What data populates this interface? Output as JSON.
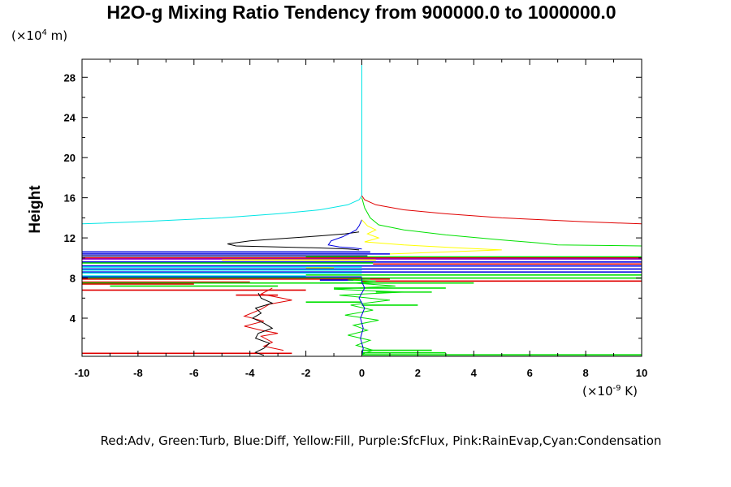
{
  "chart_data": {
    "type": "line",
    "title": "H2O-g Mixing Ratio Tendency from 900000.0 to 1000000.0",
    "ylabel": "Height",
    "y_units_prefix": "(×10",
    "y_units_exp": "4",
    "y_units_suffix": " m)",
    "x_units_prefix": "(×10",
    "x_units_exp": "-9",
    "x_units_suffix": " K)",
    "xlim": [
      -10,
      10
    ],
    "ylim": [
      0.2,
      29.8
    ],
    "x_ticks": [
      -10,
      -8,
      -6,
      -4,
      -2,
      0,
      2,
      4,
      6,
      8,
      10
    ],
    "x_tick_labels": [
      "-10",
      "-8",
      "-6",
      "-4",
      "-2",
      "0",
      "2",
      "4",
      "6",
      "8",
      "10"
    ],
    "y_ticks": [
      4,
      8,
      12,
      16,
      20,
      24,
      28
    ],
    "y_tick_labels": [
      "4",
      "8",
      "12",
      "16",
      "20",
      "24",
      "28"
    ],
    "legend_text": "Red:Adv, Green:Turb, Blue:Diff, Yellow:Fill, Purple:SfcFlux, Pink:RainEvap,Cyan:Condensation",
    "series": [
      {
        "color": "#00e5e5",
        "x": [
          -10,
          -8,
          -5,
          -3,
          -1.5,
          -0.5,
          -0.1,
          0,
          0,
          0
        ],
        "y": [
          13.4,
          13.6,
          14,
          14.4,
          14.8,
          15.3,
          15.8,
          16.2,
          20,
          29.8
        ]
      },
      {
        "color": "#e00000",
        "x": [
          10,
          8,
          5,
          3,
          1.5,
          0.5,
          0.1,
          0
        ],
        "y": [
          13.4,
          13.6,
          14,
          14.4,
          14.8,
          15.3,
          15.8,
          16.2
        ]
      },
      {
        "color": "#00e000",
        "x": [
          10,
          7,
          6.3,
          5,
          3,
          1.5,
          0.6,
          0.3,
          0.1,
          0
        ],
        "y": [
          11.2,
          11.3,
          11.5,
          11.8,
          12.3,
          12.8,
          13.3,
          14,
          15,
          16
        ]
      },
      {
        "color": "#000000",
        "x": [
          -0.1,
          -0.6,
          -1.5,
          -3,
          -4,
          -4.8,
          -4.5,
          -3,
          -1.5,
          -0.5,
          -0.1
        ],
        "y": [
          12.6,
          12.4,
          12.2,
          11.9,
          11.7,
          11.4,
          11.2,
          11.1,
          11,
          10.9,
          10.8
        ]
      },
      {
        "color": "#0000e0",
        "x": [
          0,
          -0.1,
          -0.2,
          -0.4,
          -0.7,
          -1.1,
          -1.2,
          -0.8,
          -0.3,
          0
        ],
        "y": [
          13.8,
          13.2,
          12.8,
          12.5,
          12.1,
          11.7,
          11.3,
          11.1,
          11,
          10.9
        ]
      },
      {
        "color": "#ffff00",
        "x": [
          0,
          0.2,
          0.5,
          0.2,
          0.6,
          0.1,
          1.5,
          3.5,
          5,
          3,
          1
        ],
        "y": [
          13.8,
          13.2,
          12.8,
          12.4,
          12,
          11.6,
          11.3,
          11,
          10.8,
          10.6,
          10.4
        ]
      },
      {
        "color": "#e00000",
        "x": [
          -2.8,
          -3.5,
          -3.2,
          -3.6,
          -3,
          -3.6,
          -4.2,
          -3.5,
          -4.2,
          -3.6,
          -3.3,
          -2.5,
          -3.6,
          -3.2
        ],
        "y": [
          0.8,
          1.2,
          1.6,
          2.2,
          2.5,
          2.8,
          3.2,
          3.7,
          4.2,
          4.9,
          5.4,
          5.8,
          6.4,
          7
        ]
      },
      {
        "color": "#000000",
        "x": [
          -3.5,
          -3.8,
          -3.5,
          -3.3,
          -3.8,
          -3.7,
          -3.2,
          -3.5,
          -3.9,
          -3.6,
          -3.8,
          -3.2,
          -3.6,
          -3.7
        ],
        "y": [
          0.3,
          0.6,
          1,
          1.5,
          2,
          2.5,
          3,
          3.5,
          4,
          4.5,
          5,
          5.5,
          6,
          6.5
        ]
      },
      {
        "color": "#00e000",
        "x": [
          0,
          0.4,
          -0.2,
          0.3,
          -0.5,
          0.2,
          -0.3,
          0.6,
          -0.6,
          0.4,
          -0.4,
          1,
          -0.8,
          1.5,
          -1,
          1.2,
          -0.3,
          0.5,
          -0.5,
          0.3
        ],
        "y": [
          0.4,
          0.8,
          1.3,
          1.8,
          2.3,
          2.8,
          3.3,
          3.8,
          4.3,
          4.8,
          5.3,
          5.8,
          6.3,
          6.6,
          6.9,
          7.2,
          7.5,
          7.7,
          7.8,
          7.9
        ]
      },
      {
        "color": "#0000e0",
        "x": [
          0,
          0.05,
          -0.05,
          0.05,
          -0.05,
          0.1,
          -0.1,
          0.1,
          0,
          0
        ],
        "y": [
          0.3,
          1,
          2,
          3,
          4,
          5,
          6,
          7,
          7.6,
          8
        ]
      }
    ],
    "bands": [
      {
        "color": "#0000e0",
        "y": 10.6,
        "x0": -10,
        "x1": 0.3
      },
      {
        "color": "#0000e0",
        "y": 10.4,
        "x0": -10,
        "x1": 1
      },
      {
        "color": "#000080",
        "y": 10.2,
        "x0": -10,
        "x1": 0.2
      },
      {
        "color": "#00e000",
        "y": 10.1,
        "x0": -2,
        "x1": 10
      },
      {
        "color": "#e00000",
        "y": 10.0,
        "x0": -10,
        "x1": 10
      },
      {
        "color": "#9900cc",
        "y": 9.9,
        "x0": -10,
        "x1": 10
      },
      {
        "color": "#ffff00",
        "y": 9.8,
        "x0": -5,
        "x1": 0.5
      },
      {
        "color": "#0000e0",
        "y": 9.6,
        "x0": -10,
        "x1": 10
      },
      {
        "color": "#00e000",
        "y": 9.5,
        "x0": -10,
        "x1": 0.4
      },
      {
        "color": "#e00000",
        "y": 9.4,
        "x0": 0.4,
        "x1": 10
      },
      {
        "color": "#0000e0",
        "y": 9.2,
        "x0": -10,
        "x1": 10
      },
      {
        "color": "#00e5e5",
        "y": 9.1,
        "x0": -10,
        "x1": 0
      },
      {
        "color": "#ffff00",
        "y": 9.0,
        "x0": -2,
        "x1": -1
      },
      {
        "color": "#0000e0",
        "y": 8.9,
        "x0": -10,
        "x1": 10
      },
      {
        "color": "#00e5e5",
        "y": 8.8,
        "x0": -10,
        "x1": 0
      },
      {
        "color": "#0000e0",
        "y": 8.6,
        "x0": -10,
        "x1": 10
      },
      {
        "color": "#00e5e5",
        "y": 8.5,
        "x0": -10,
        "x1": 0
      },
      {
        "color": "#00e000",
        "y": 8.3,
        "x0": -2,
        "x1": 10
      },
      {
        "color": "#00e5e5",
        "y": 8.2,
        "x0": -10,
        "x1": -2
      },
      {
        "color": "#0000e0",
        "y": 8.1,
        "x0": -10,
        "x1": 0
      },
      {
        "color": "#00e000",
        "y": 8.0,
        "x0": -10,
        "x1": 10
      },
      {
        "color": "#e00000",
        "y": 7.9,
        "x0": -10,
        "x1": 1
      },
      {
        "color": "#0000e0",
        "y": 7.8,
        "x0": -1.5,
        "x1": -0.3
      },
      {
        "color": "#e00000",
        "y": 7.7,
        "x0": 0,
        "x1": 10
      },
      {
        "color": "#e00000",
        "y": 7.6,
        "x0": -10,
        "x1": -4
      },
      {
        "color": "#00e000",
        "y": 7.5,
        "x0": -10,
        "x1": 4
      },
      {
        "color": "#e00000",
        "y": 7.4,
        "x0": -10,
        "x1": -6
      },
      {
        "color": "#00e000",
        "y": 7.2,
        "x0": -9,
        "x1": -3
      },
      {
        "color": "#00e000",
        "y": 7.0,
        "x0": -1,
        "x1": 3
      },
      {
        "color": "#e00000",
        "y": 6.8,
        "x0": -10,
        "x1": -2
      },
      {
        "color": "#00e000",
        "y": 6.6,
        "x0": 0.5,
        "x1": 2.5
      },
      {
        "color": "#e00000",
        "y": 6.3,
        "x0": -4.5,
        "x1": -3
      },
      {
        "color": "#00e000",
        "y": 5.6,
        "x0": -2,
        "x1": 0
      },
      {
        "color": "#00e000",
        "y": 5.3,
        "x0": 0,
        "x1": 2
      },
      {
        "color": "#00e000",
        "y": 0.8,
        "x0": 0,
        "x1": 2.5
      },
      {
        "color": "#00e000",
        "y": 0.55,
        "x0": 0,
        "x1": 3
      },
      {
        "color": "#e00000",
        "y": 0.5,
        "x0": -10,
        "x1": -2.5
      },
      {
        "color": "#00e000",
        "y": 0.35,
        "x0": 0,
        "x1": 10
      }
    ],
    "grid": false
  }
}
